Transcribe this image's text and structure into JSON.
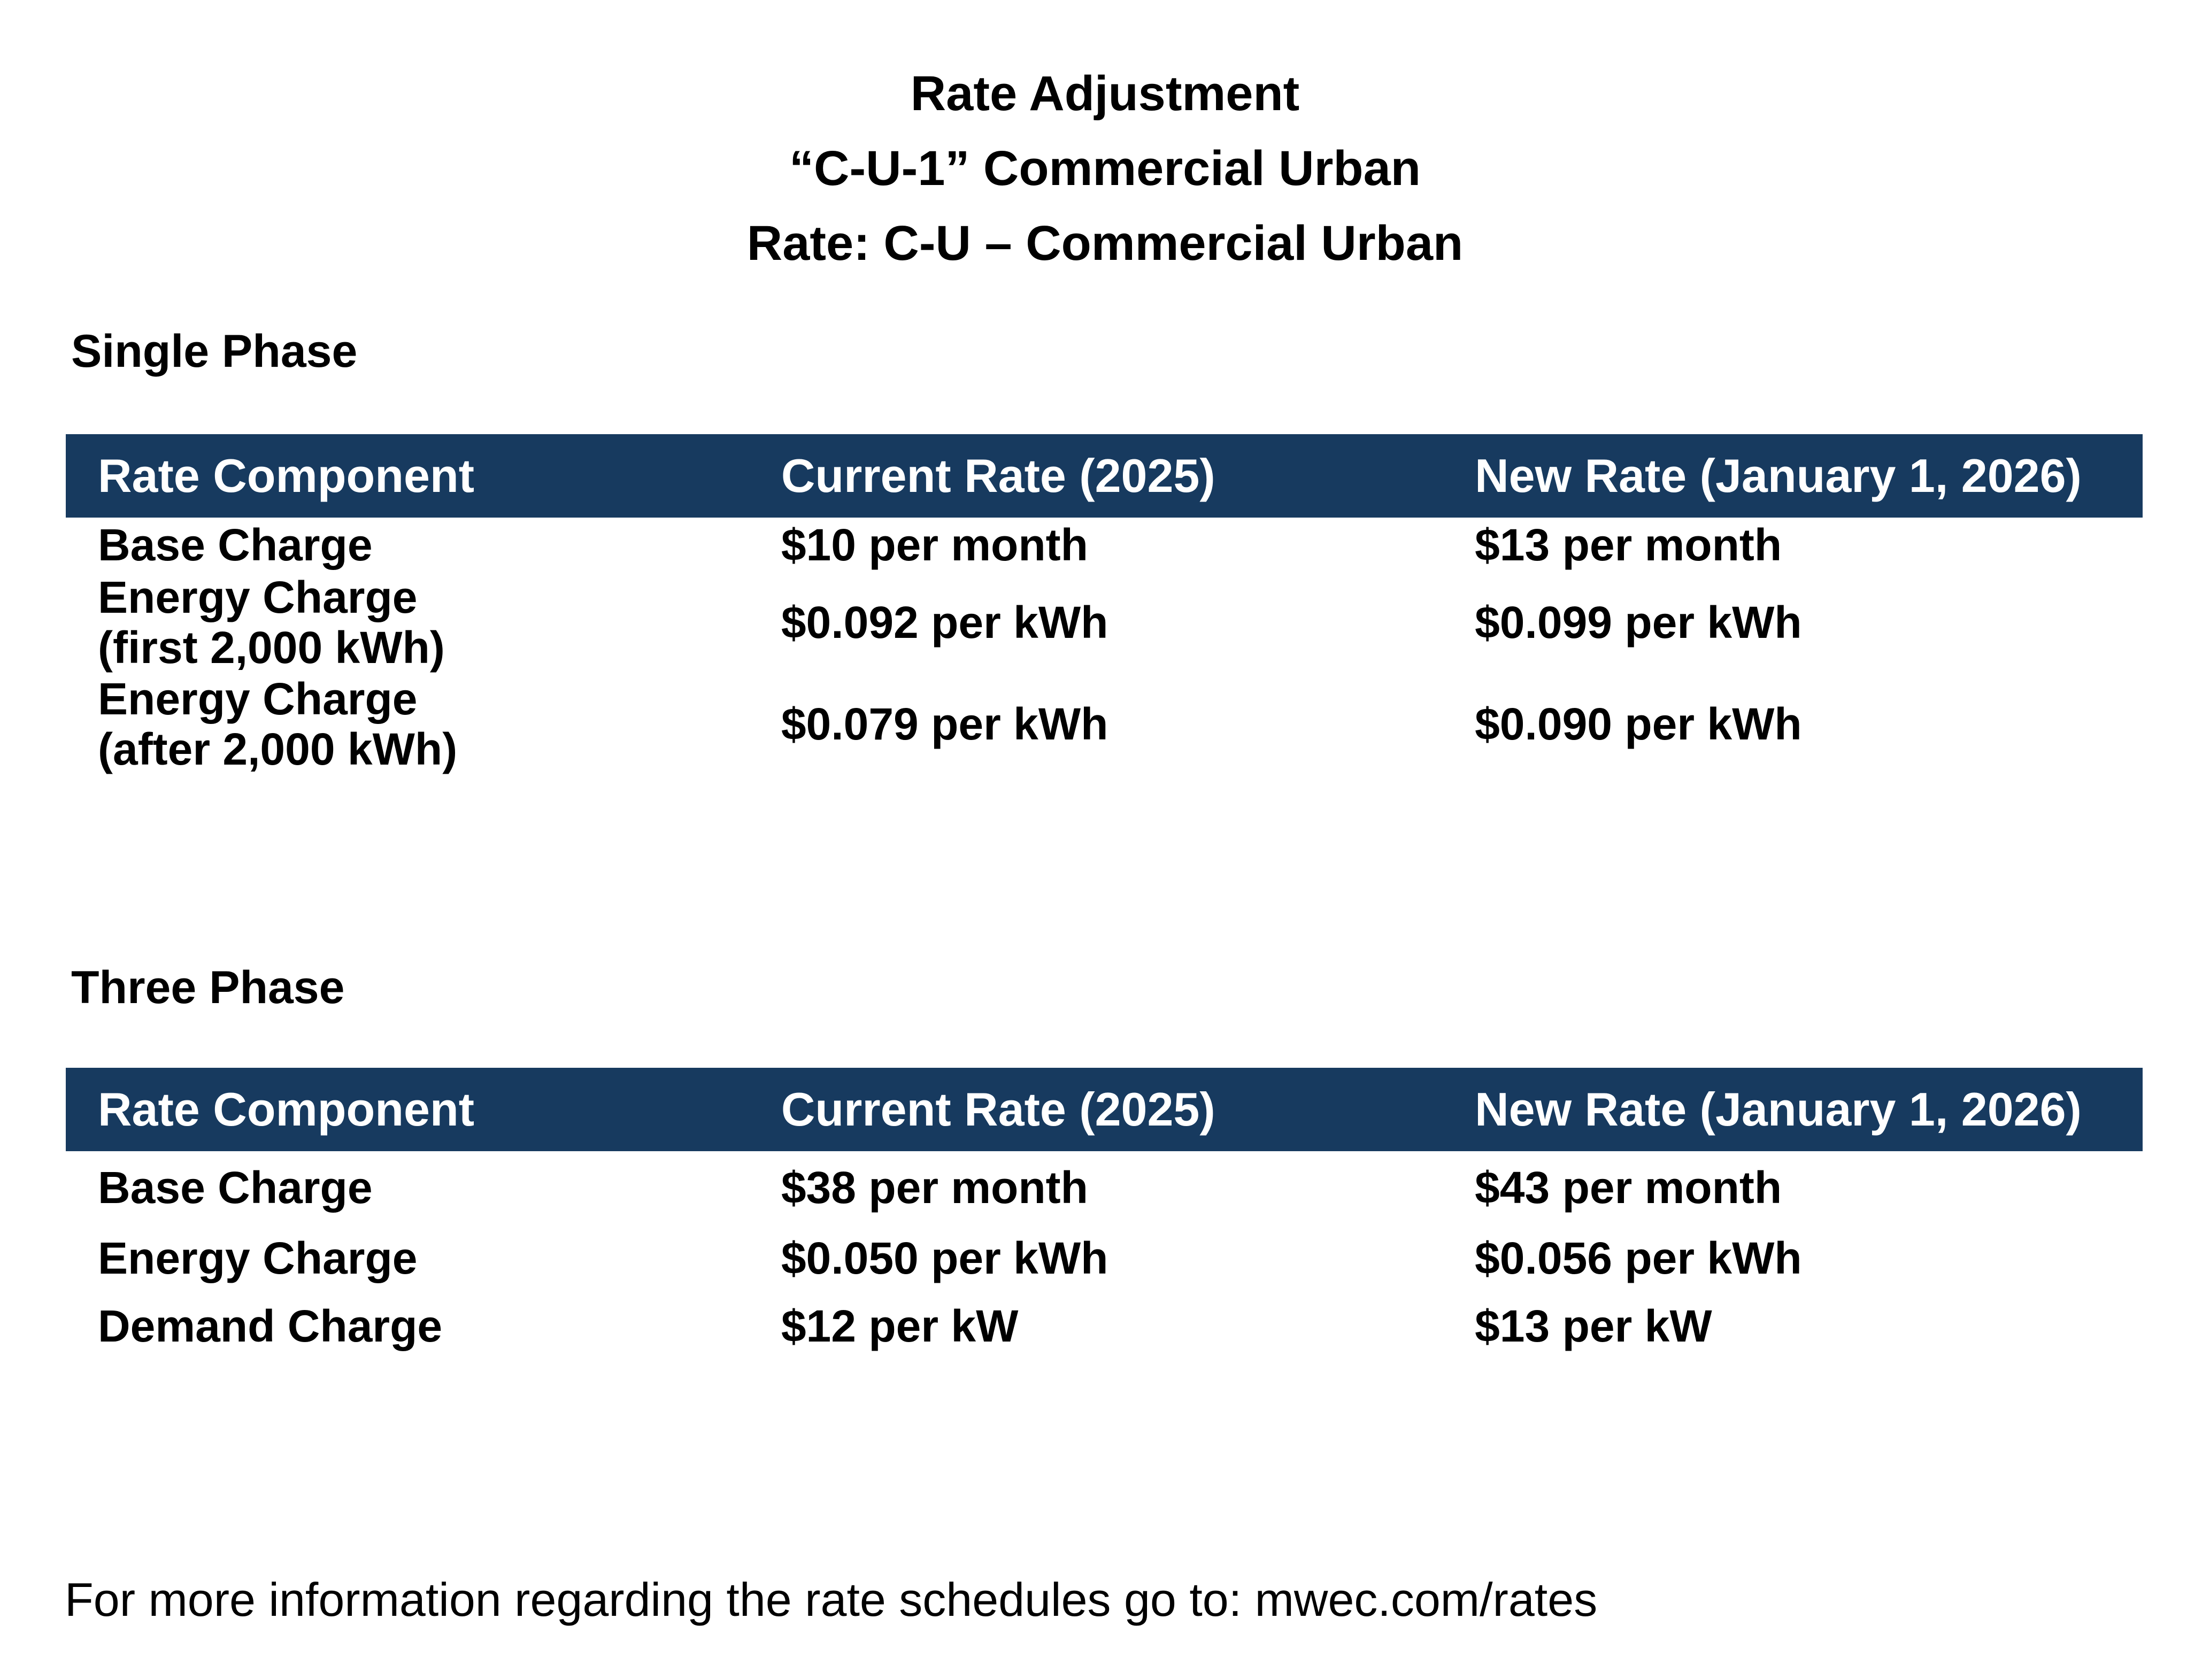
{
  "title": {
    "line1": "Rate Adjustment",
    "line2": "“C-U-1” Commercial Urban",
    "line3": "Rate: C-U – Commercial Urban"
  },
  "colors": {
    "table_header_bg": "#173A5F",
    "table_header_text": "#FFFFFF",
    "body_text": "#000000",
    "page_background": "#FFFFFF"
  },
  "sections": [
    {
      "heading": "Single Phase",
      "columns": [
        "Rate Component",
        "Current Rate (2025)",
        "New Rate (January 1, 2026)"
      ],
      "rows": [
        {
          "component": "Base Charge",
          "note": "",
          "current": "$10 per month",
          "new": "$13 per month"
        },
        {
          "component": "Energy Charge",
          "note": "(first 2,000 kWh)",
          "current": "$0.092 per kWh",
          "new": "$0.099 per kWh"
        },
        {
          "component": "Energy Charge",
          "note": "(after 2,000 kWh)",
          "current": "$0.079 per kWh",
          "new": "$0.090 per kWh"
        }
      ]
    },
    {
      "heading": "Three Phase",
      "columns": [
        "Rate Component",
        "Current Rate (2025)",
        "New Rate (January 1, 2026)"
      ],
      "rows": [
        {
          "component": "Base Charge",
          "current": "$38 per month",
          "new": "$43 per month"
        },
        {
          "component": "Energy Charge",
          "current": "$0.050 per kWh",
          "new": "$0.056 per kWh"
        },
        {
          "component": "Demand Charge",
          "current": "$12 per kW",
          "new": "$13 per kW"
        }
      ]
    }
  ],
  "footer": {
    "text": "For more information regarding the rate schedules go to: mwec.com/rates"
  }
}
